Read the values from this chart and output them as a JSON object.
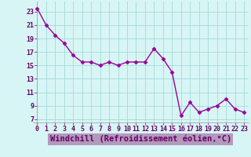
{
  "x": [
    0,
    1,
    2,
    3,
    4,
    5,
    6,
    7,
    8,
    9,
    10,
    11,
    12,
    13,
    14,
    15,
    16,
    17,
    18,
    19,
    20,
    21,
    22,
    23
  ],
  "y": [
    23.5,
    21.0,
    19.5,
    18.3,
    16.5,
    15.5,
    15.5,
    15.0,
    15.5,
    15.0,
    15.5,
    15.5,
    15.5,
    17.5,
    16.0,
    14.0,
    7.5,
    9.5,
    8.0,
    8.5,
    9.0,
    10.0,
    8.5,
    8.0
  ],
  "line_color": "#990099",
  "marker": "D",
  "marker_size": 2.5,
  "bg_color": "#d8f5f5",
  "grid_color": "#aadddd",
  "xlabel": "Windchill (Refroidissement éolien,°C)",
  "xlabel_color": "#660066",
  "xlabel_bg": "#b399bb",
  "yticks": [
    7,
    9,
    11,
    13,
    15,
    17,
    19,
    21,
    23
  ],
  "xticks": [
    0,
    1,
    2,
    3,
    4,
    5,
    6,
    7,
    8,
    9,
    10,
    11,
    12,
    13,
    14,
    15,
    16,
    17,
    18,
    19,
    20,
    21,
    22,
    23
  ],
  "ylim": [
    6.5,
    24.5
  ],
  "xlim": [
    -0.5,
    23.5
  ],
  "tick_label_color": "#660066",
  "linewidth": 1.0,
  "xlabel_fontsize": 7.5,
  "tick_fontsize": 6.0,
  "fig_width": 3.2,
  "fig_height": 2.0,
  "dpi": 100
}
